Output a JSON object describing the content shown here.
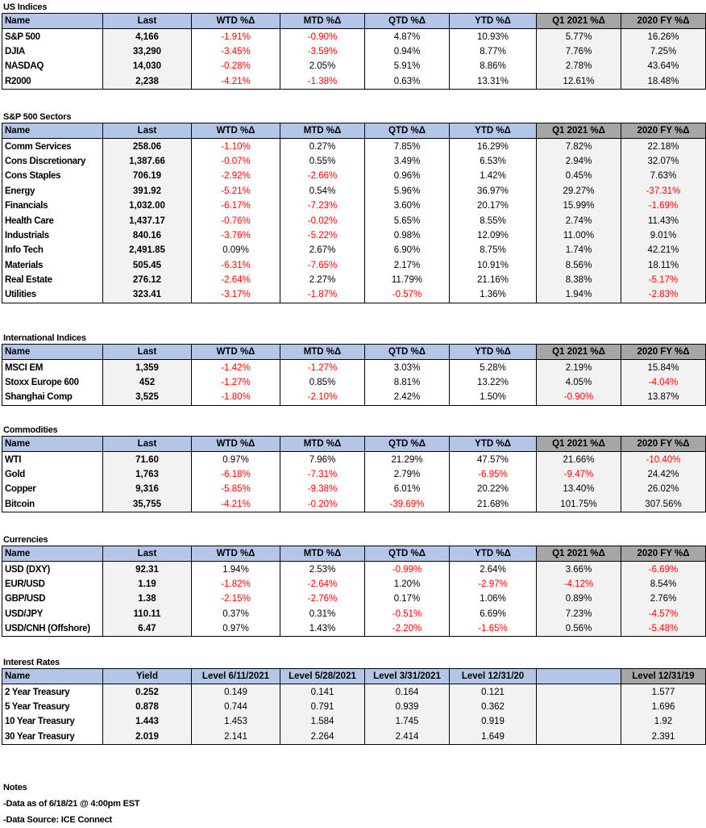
{
  "columns": {
    "name": "Name",
    "last": "Last",
    "wtd": "WTD %Δ",
    "mtd": "MTD %Δ",
    "qtd": "QTD %Δ",
    "ytd": "YTD %Δ",
    "q1": "Q1 2021 %Δ",
    "fy": "2020 FY %Δ"
  },
  "sections": [
    {
      "title": "US Indices",
      "rows": [
        [
          "S&P 500",
          "4,166",
          "-1.91%",
          "-0.90%",
          "4.87%",
          "10.93%",
          "5.77%",
          "16.26%"
        ],
        [
          "DJIA",
          "33,290",
          "-3.45%",
          "-3.59%",
          "0.94%",
          "8.77%",
          "7.76%",
          "7.25%"
        ],
        [
          "NASDAQ",
          "14,030",
          "-0.28%",
          "2.05%",
          "5.91%",
          "8.86%",
          "2.78%",
          "43.64%"
        ],
        [
          "R2000",
          "2,238",
          "-4.21%",
          "-1.38%",
          "0.63%",
          "13.31%",
          "12.61%",
          "18.48%"
        ]
      ]
    },
    {
      "title": "S&P 500 Sectors",
      "rows": [
        [
          "Comm Services",
          "258.06",
          "-1.10%",
          "0.27%",
          "7.85%",
          "16.29%",
          "7.82%",
          "22.18%"
        ],
        [
          "Cons Discretionary",
          "1,387.66",
          "-0.07%",
          "0.55%",
          "3.49%",
          "6.53%",
          "2.94%",
          "32.07%"
        ],
        [
          "Cons Staples",
          "706.19",
          "-2.92%",
          "-2.66%",
          "0.96%",
          "1.42%",
          "0.45%",
          "7.63%"
        ],
        [
          "Energy",
          "391.92",
          "-5.21%",
          "0.54%",
          "5.96%",
          "36.97%",
          "29.27%",
          "-37.31%"
        ],
        [
          "Financials",
          "1,032.00",
          "-6.17%",
          "-7.23%",
          "3.60%",
          "20.17%",
          "15.99%",
          "-1.69%"
        ],
        [
          "Health Care",
          "1,437.17",
          "-0.76%",
          "-0.02%",
          "5.65%",
          "8.55%",
          "2.74%",
          "11.43%"
        ],
        [
          "Industrials",
          "840.16",
          "-3.76%",
          "-5.22%",
          "0.98%",
          "12.09%",
          "11.00%",
          "9.01%"
        ],
        [
          "Info Tech",
          "2,491.85",
          "0.09%",
          "2.67%",
          "6.90%",
          "8.75%",
          "1.74%",
          "42.21%"
        ],
        [
          "Materials",
          "505.45",
          "-6.31%",
          "-7.65%",
          "2.17%",
          "10.91%",
          "8.56%",
          "18.11%"
        ],
        [
          "Real Estate",
          "276.12",
          "-2.64%",
          "2.27%",
          "11.79%",
          "21.16%",
          "8.38%",
          "-5.17%"
        ],
        [
          "Utilities",
          "323.41",
          "-3.17%",
          "-1.87%",
          "-0.57%",
          "1.36%",
          "1.94%",
          "-2.83%"
        ]
      ]
    },
    {
      "title": "International Indices",
      "rows": [
        [
          "MSCI EM",
          "1,359",
          "-1.42%",
          "-1.27%",
          "3.03%",
          "5.28%",
          "2.19%",
          "15.84%"
        ],
        [
          "Stoxx Europe 600",
          "452",
          "-1.27%",
          "0.85%",
          "8.81%",
          "13.22%",
          "4.05%",
          "-4.04%"
        ],
        [
          "Shanghai Comp",
          "3,525",
          "-1.80%",
          "-2.10%",
          "2.42%",
          "1.50%",
          "-0.90%",
          "13.87%"
        ]
      ]
    },
    {
      "title": "Commodities",
      "rows": [
        [
          "WTI",
          "71.60",
          "0.97%",
          "7.96%",
          "21.29%",
          "47.57%",
          "21.66%",
          "-10.40%"
        ],
        [
          "Gold",
          "1,763",
          "-6.18%",
          "-7.31%",
          "2.79%",
          "-6.95%",
          "-9.47%",
          "24.42%"
        ],
        [
          "Copper",
          "9,316",
          "-5.85%",
          "-9.38%",
          "6.01%",
          "20.22%",
          "13.40%",
          "26.02%"
        ],
        [
          "Bitcoin",
          "35,755",
          "-4.21%",
          "-0.20%",
          "-39.69%",
          "21.68%",
          "101.75%",
          "307.56%"
        ]
      ]
    },
    {
      "title": "Currencies",
      "rows": [
        [
          "USD (DXY)",
          "92.31",
          "1.94%",
          "2.53%",
          "-0.99%",
          "2.64%",
          "3.66%",
          "-6.69%"
        ],
        [
          "EUR/USD",
          "1.19",
          "-1.82%",
          "-2.64%",
          "1.20%",
          "-2.97%",
          "-4.12%",
          "8.54%"
        ],
        [
          "GBP/USD",
          "1.38",
          "-2.15%",
          "-2.76%",
          "0.17%",
          "1.06%",
          "0.89%",
          "2.76%"
        ],
        [
          "USD/JPY",
          "110.11",
          "0.37%",
          "0.31%",
          "-0.51%",
          "6.69%",
          "7.23%",
          "-4.57%"
        ],
        [
          "USD/CNH (Offshore)",
          "6.47",
          "0.97%",
          "1.43%",
          "-2.20%",
          "-1.65%",
          "0.56%",
          "-5.48%"
        ]
      ]
    }
  ],
  "rates": {
    "title": "Interest Rates",
    "columns": [
      "Name",
      "Yield",
      "Level 6/11/2021",
      "Level 5/28/2021",
      "Level 3/31/2021",
      "Level 12/31/20",
      "",
      "Level 12/31/19"
    ],
    "rows": [
      [
        "2 Year Treasury",
        "0.252",
        "0.149",
        "0.141",
        "0.164",
        "0.121",
        "",
        "1.577"
      ],
      [
        "5 Year Treasury",
        "0.878",
        "0.744",
        "0.791",
        "0.939",
        "0.362",
        "",
        "1.696"
      ],
      [
        "10 Year Treasury",
        "1.443",
        "1.453",
        "1.584",
        "1.745",
        "0.919",
        "",
        "1.92"
      ],
      [
        "30 Year Treasury",
        "2.019",
        "2.141",
        "2.264",
        "2.414",
        "1.649",
        "",
        "2.391"
      ]
    ]
  },
  "notes": {
    "title": "Notes",
    "lines": [
      "-Data as of 6/18/21 @ 4:00pm EST",
      "-Data Source: ICE Connect"
    ]
  }
}
